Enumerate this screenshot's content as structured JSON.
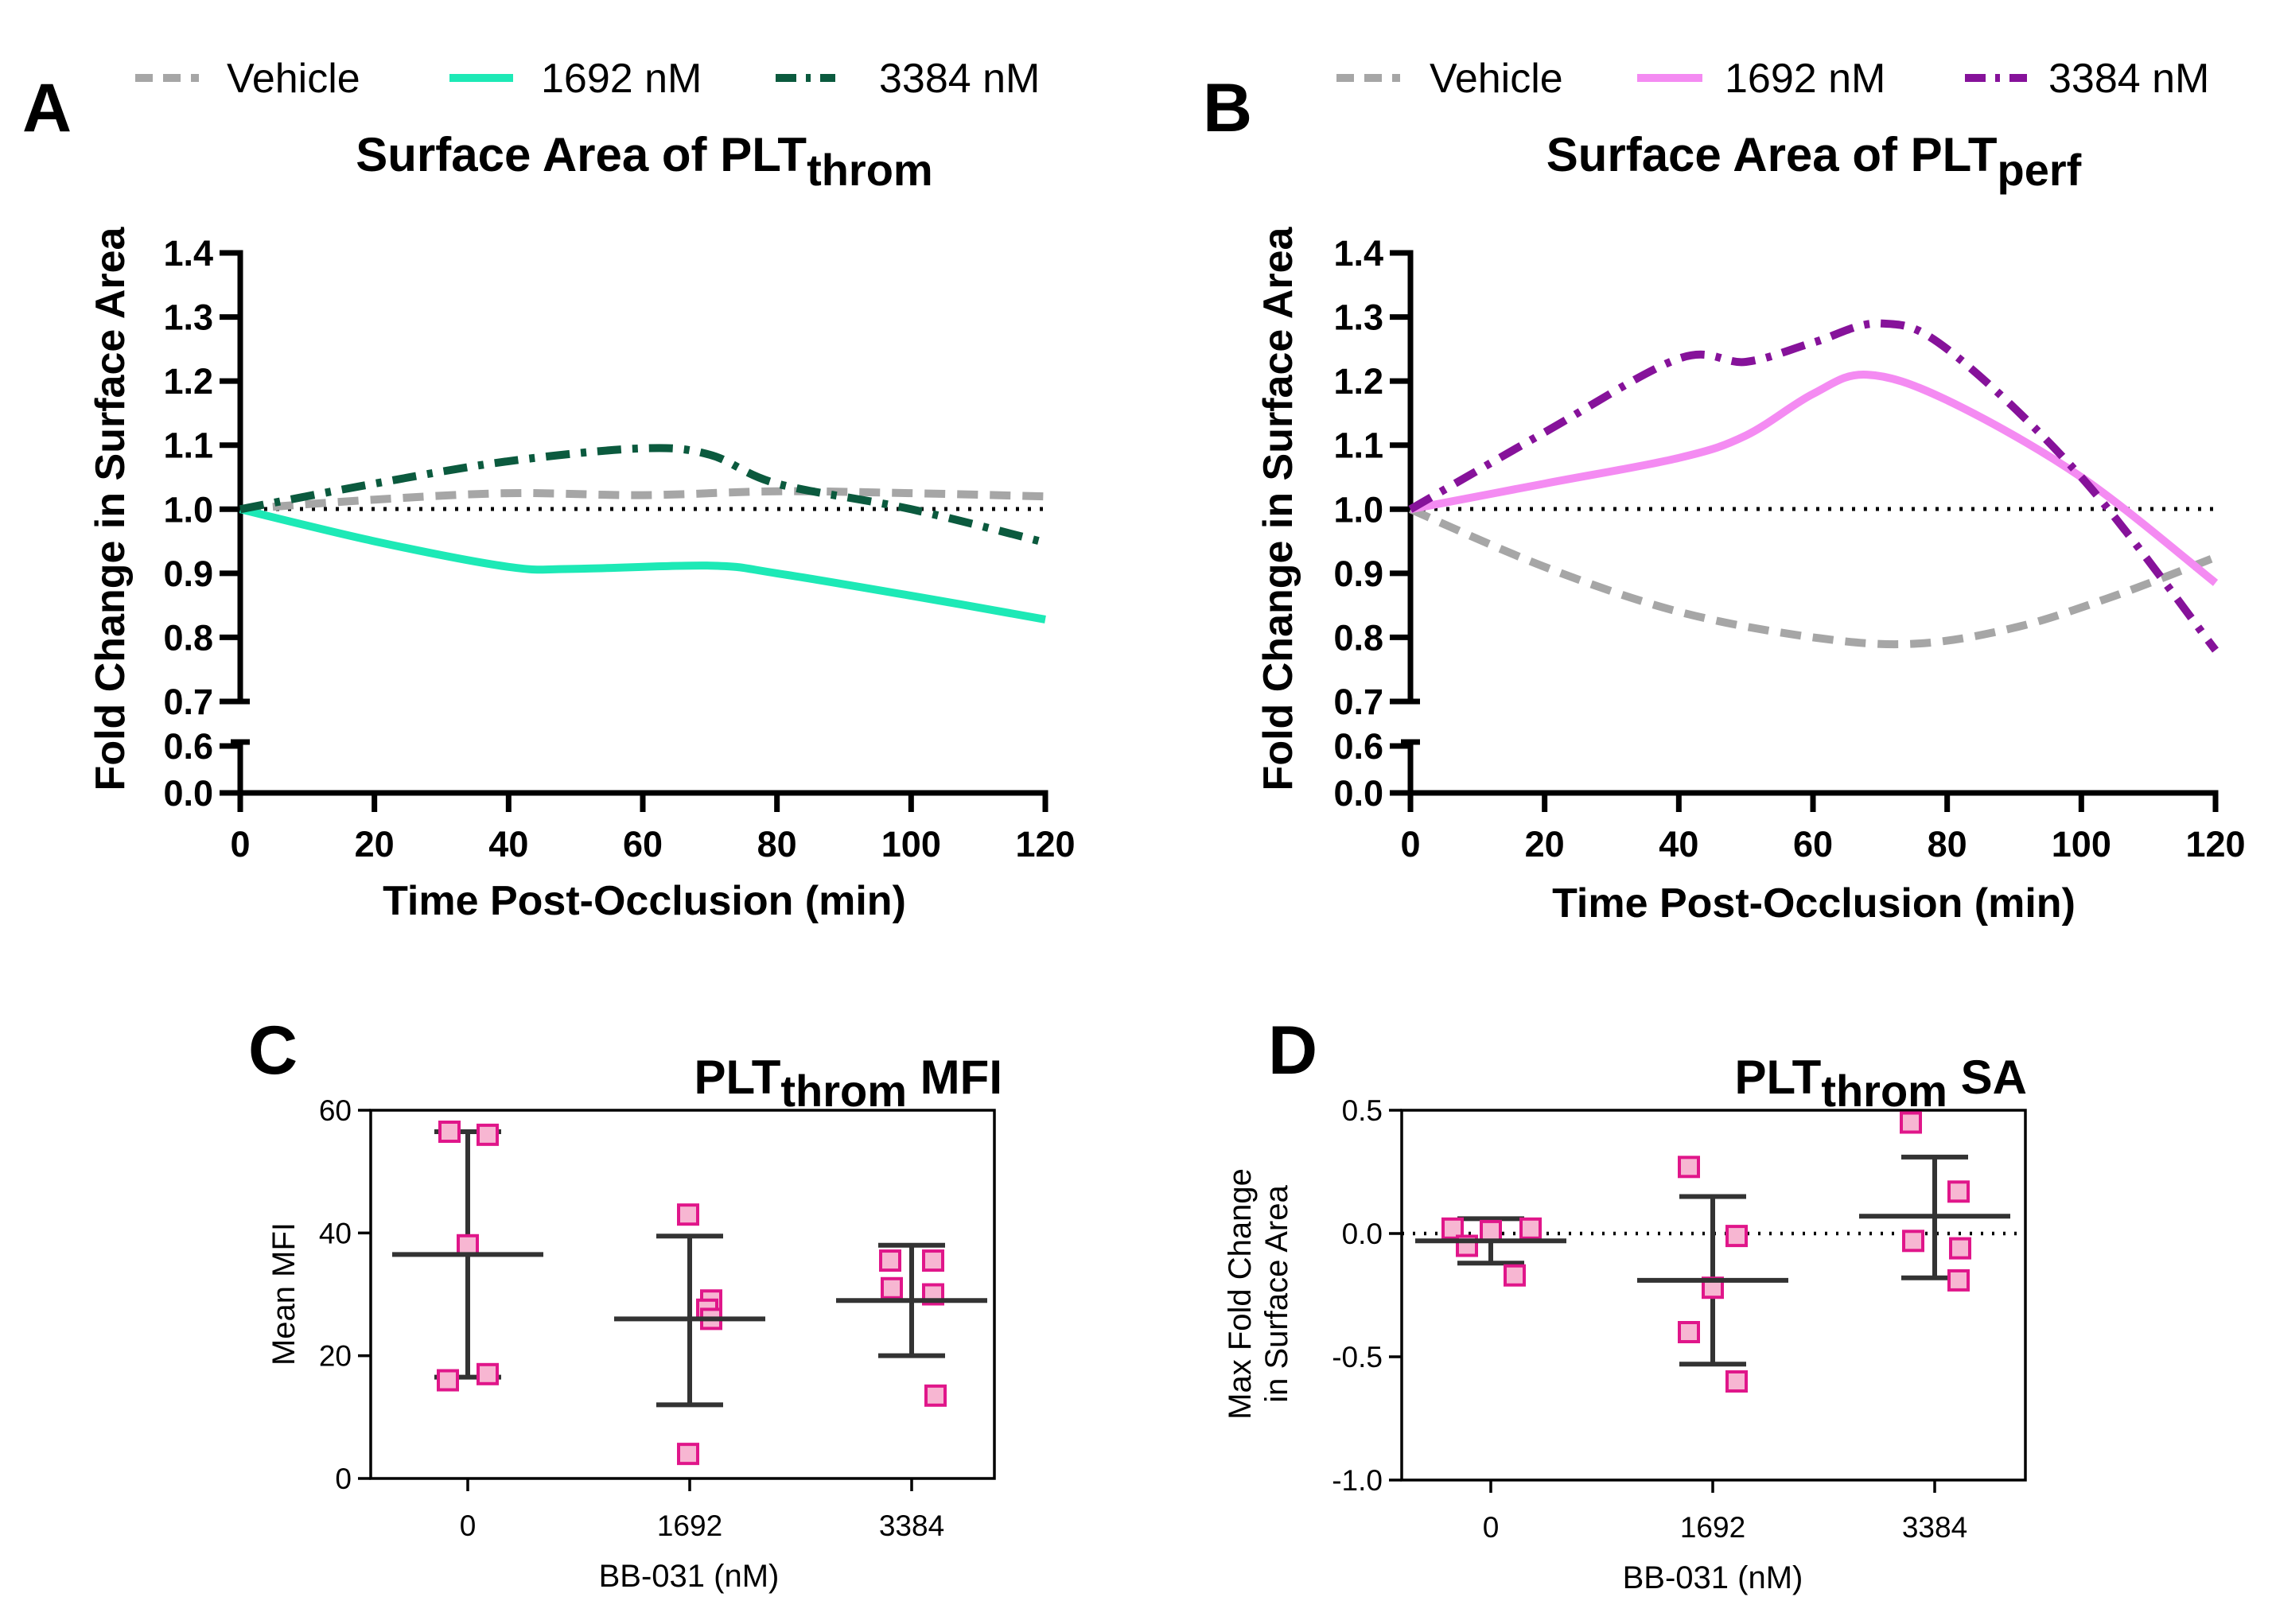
{
  "panels": {
    "A": {
      "letter": "A",
      "title_main": "Surface Area of PLT",
      "title_sub": "throm",
      "legend": [
        "Vehicle",
        "1692 nM",
        "3384 nM"
      ]
    },
    "B": {
      "letter": "B",
      "title_main": "Surface Area of PLT",
      "title_sub": "perf",
      "legend": [
        "Vehicle",
        "1692 nM",
        "3384 nM"
      ]
    },
    "C": {
      "letter": "C",
      "title_main": "PLT",
      "title_sub": "throm",
      "title_tail": " MFI"
    },
    "D": {
      "letter": "D",
      "title_main": "PLT",
      "title_sub": "throm",
      "title_tail": " SA"
    }
  },
  "colors": {
    "vehicle": "#a6a6a6",
    "A_1692": "#1de9b6",
    "A_3384": "#0b5a3e",
    "B_1692": "#f48bf2",
    "B_3384": "#86129a",
    "point_fill": "#f7b6d2",
    "point_stroke": "#e0168a",
    "errbar": "#333333"
  },
  "chart_data": [
    {
      "id": "A",
      "type": "line",
      "title": "Surface Area of PLTthrom",
      "xlabel": "Time Post-Occlusion (min)",
      "ylabel": "Fold Change in Surface Area",
      "xlim": [
        0,
        120
      ],
      "ylim": [
        0.7,
        1.4
      ],
      "ylim_broken_lower": [
        0.0,
        0.6
      ],
      "xticks": [
        "0",
        "20",
        "40",
        "60",
        "80",
        "100",
        "120"
      ],
      "yticks": [
        "0.7",
        "0.8",
        "0.9",
        "1.0",
        "1.1",
        "1.2",
        "1.3",
        "1.4"
      ],
      "yticks_lower": [
        "0.0",
        "0.6"
      ],
      "reference_line": 1.0,
      "series": [
        {
          "name": "Vehicle",
          "style": "dashed",
          "color_key": "vehicle",
          "x": [
            0,
            20,
            40,
            60,
            80,
            100,
            120
          ],
          "y": [
            1.0,
            1.015,
            1.025,
            1.022,
            1.028,
            1.025,
            1.02
          ]
        },
        {
          "name": "1692 nM",
          "style": "solid",
          "color_key": "A_1692",
          "x": [
            0,
            20,
            40,
            50,
            70,
            80,
            100,
            120
          ],
          "y": [
            1.0,
            0.95,
            0.91,
            0.907,
            0.912,
            0.9,
            0.865,
            0.828
          ]
        },
        {
          "name": "3384 nM",
          "style": "dashdot",
          "color_key": "A_3384",
          "x": [
            0,
            20,
            40,
            60,
            70,
            80,
            100,
            120
          ],
          "y": [
            1.0,
            1.04,
            1.075,
            1.095,
            1.085,
            1.04,
            1.0,
            0.948
          ]
        }
      ]
    },
    {
      "id": "B",
      "type": "line",
      "title": "Surface Area of PLTperf",
      "xlabel": "Time Post-Occlusion (min)",
      "ylabel": "Fold Change in Surface Area",
      "xlim": [
        0,
        120
      ],
      "ylim": [
        0.7,
        1.4
      ],
      "ylim_broken_lower": [
        0.0,
        0.6
      ],
      "xticks": [
        "0",
        "20",
        "40",
        "60",
        "80",
        "100",
        "120"
      ],
      "yticks": [
        "0.7",
        "0.8",
        "0.9",
        "1.0",
        "1.1",
        "1.2",
        "1.3",
        "1.4"
      ],
      "yticks_lower": [
        "0.0",
        "0.6"
      ],
      "reference_line": 1.0,
      "series": [
        {
          "name": "Vehicle",
          "style": "dashed",
          "color_key": "vehicle",
          "x": [
            0,
            20,
            40,
            60,
            75,
            90,
            105,
            120
          ],
          "y": [
            1.0,
            0.91,
            0.84,
            0.8,
            0.79,
            0.815,
            0.865,
            0.925
          ]
        },
        {
          "name": "1692 nM",
          "style": "solid",
          "color_key": "B_1692",
          "x": [
            0,
            20,
            40,
            50,
            60,
            68,
            80,
            100,
            120
          ],
          "y": [
            1.0,
            1.04,
            1.08,
            1.115,
            1.18,
            1.21,
            1.17,
            1.05,
            0.885
          ]
        },
        {
          "name": "3384 nM",
          "style": "dashdot",
          "color_key": "B_3384",
          "x": [
            0,
            20,
            40,
            50,
            60,
            70,
            80,
            100,
            120
          ],
          "y": [
            1.0,
            1.12,
            1.235,
            1.23,
            1.26,
            1.29,
            1.25,
            1.05,
            0.78
          ]
        }
      ]
    },
    {
      "id": "C",
      "type": "scatter",
      "title": "PLTthrom MFI",
      "xlabel": "BB-031 (nM)",
      "ylabel": "Mean MFI",
      "categories": [
        "0",
        "1692",
        "3384"
      ],
      "ylim": [
        0,
        60
      ],
      "yticks": [
        "0",
        "20",
        "40",
        "60"
      ],
      "groups": [
        {
          "category": "0",
          "points": [
            56.5,
            56,
            38,
            16,
            17
          ],
          "mean": 36.5,
          "sd_low": 16.5,
          "sd_high": 56.5
        },
        {
          "category": "1692",
          "points": [
            43,
            29,
            27.5,
            26,
            4
          ],
          "mean": 26,
          "sd_low": 12,
          "sd_high": 39.5
        },
        {
          "category": "3384",
          "points": [
            35.5,
            35.5,
            31,
            30,
            13.5
          ],
          "mean": 29,
          "sd_low": 20,
          "sd_high": 38
        }
      ]
    },
    {
      "id": "D",
      "type": "scatter",
      "title": "PLTthrom SA",
      "xlabel": "BB-031 (nM)",
      "ylabel": "Max Fold Change\nin Surface Area",
      "ylabel_lines": [
        "Max Fold Change",
        "in Surface Area"
      ],
      "categories": [
        "0",
        "1692",
        "3384"
      ],
      "ylim": [
        -1.0,
        0.5
      ],
      "yticks": [
        "-1.0",
        "-0.5",
        "0.0",
        "0.5"
      ],
      "reference_line": 0.0,
      "groups": [
        {
          "category": "0",
          "points": [
            0.02,
            0.02,
            0.01,
            -0.05,
            -0.17
          ],
          "mean": -0.03,
          "sd_low": -0.12,
          "sd_high": 0.06
        },
        {
          "category": "1692",
          "points": [
            0.27,
            -0.01,
            -0.22,
            -0.4,
            -0.6
          ],
          "mean": -0.19,
          "sd_low": -0.53,
          "sd_high": 0.15
        },
        {
          "category": "3384",
          "points": [
            0.45,
            0.17,
            -0.03,
            -0.06,
            -0.19
          ],
          "mean": 0.07,
          "sd_low": -0.18,
          "sd_high": 0.31
        }
      ]
    }
  ]
}
